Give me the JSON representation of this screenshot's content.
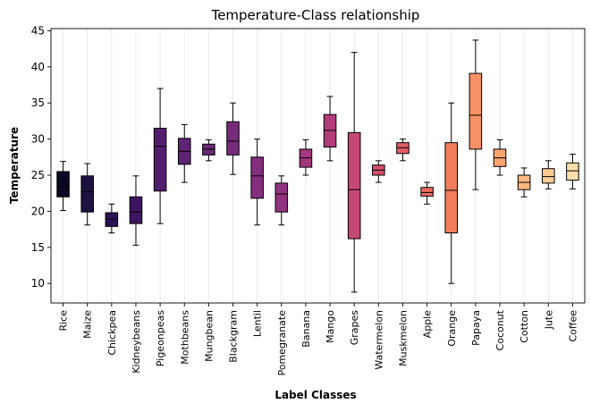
{
  "chart_data": {
    "type": "box",
    "title": "Temperature-Class relationship",
    "xlabel": "Label Classes",
    "ylabel": "Temperature",
    "ylim": [
      7.3,
      45.3
    ],
    "yticks": [
      10,
      15,
      20,
      25,
      30,
      35,
      40,
      45
    ],
    "grid": "vertical-x",
    "categories": [
      "Rice",
      "Maize",
      "Chickpea",
      "Kidneybeans",
      "Pigeonpeas",
      "Mothbeans",
      "Mungbean",
      "Blackgram",
      "Lentil",
      "Pomegranate",
      "Banana",
      "Mango",
      "Grapes",
      "Watermelon",
      "Muskmelon",
      "Apple",
      "Orange",
      "Papaya",
      "Coconut",
      "Cotton",
      "Jute",
      "Coffee"
    ],
    "colors": [
      "#0a0822",
      "#1e1240",
      "#2c1155",
      "#3e1563",
      "#541e6e",
      "#5f2373",
      "#6b2877",
      "#772c7b",
      "#842e7e",
      "#92337f",
      "#a3367f",
      "#b23b7a",
      "#c54774",
      "#d5506d",
      "#e35d67",
      "#ed6c5e",
      "#f07e5c",
      "#f59164",
      "#faa470",
      "#fcb880",
      "#fdcc95",
      "#fcdeab"
    ],
    "boxes": [
      {
        "min": 20.1,
        "q1": 22.0,
        "median": 23.4,
        "q3": 25.5,
        "max": 26.9
      },
      {
        "min": 18.1,
        "q1": 19.9,
        "median": 22.7,
        "q3": 24.9,
        "max": 26.6
      },
      {
        "min": 17.0,
        "q1": 17.9,
        "median": 18.9,
        "q3": 19.8,
        "max": 21.0
      },
      {
        "min": 15.3,
        "q1": 18.3,
        "median": 19.9,
        "q3": 22.0,
        "max": 24.9
      },
      {
        "min": 18.3,
        "q1": 22.8,
        "median": 29.0,
        "q3": 31.5,
        "max": 37.0
      },
      {
        "min": 24.0,
        "q1": 26.5,
        "median": 28.3,
        "q3": 30.1,
        "max": 32.0
      },
      {
        "min": 27.0,
        "q1": 27.8,
        "median": 28.6,
        "q3": 29.3,
        "max": 29.9
      },
      {
        "min": 25.1,
        "q1": 27.8,
        "median": 29.7,
        "q3": 32.4,
        "max": 35.0
      },
      {
        "min": 18.1,
        "q1": 21.8,
        "median": 24.9,
        "q3": 27.5,
        "max": 30.0
      },
      {
        "min": 18.1,
        "q1": 19.9,
        "median": 22.4,
        "q3": 23.9,
        "max": 24.9
      },
      {
        "min": 25.0,
        "q1": 26.1,
        "median": 27.4,
        "q3": 28.6,
        "max": 29.9
      },
      {
        "min": 27.0,
        "q1": 28.9,
        "median": 31.2,
        "q3": 33.4,
        "max": 35.9
      },
      {
        "min": 8.8,
        "q1": 16.2,
        "median": 23.0,
        "q3": 30.9,
        "max": 42.0
      },
      {
        "min": 24.0,
        "q1": 25.0,
        "median": 25.7,
        "q3": 26.4,
        "max": 27.0
      },
      {
        "min": 27.0,
        "q1": 28.0,
        "median": 28.8,
        "q3": 29.5,
        "max": 30.0
      },
      {
        "min": 21.0,
        "q1": 22.1,
        "median": 22.6,
        "q3": 23.3,
        "max": 24.0
      },
      {
        "min": 10.0,
        "q1": 17.0,
        "median": 22.9,
        "q3": 29.5,
        "max": 35.0
      },
      {
        "min": 23.0,
        "q1": 28.6,
        "median": 33.3,
        "q3": 39.1,
        "max": 43.7
      },
      {
        "min": 25.0,
        "q1": 26.2,
        "median": 27.4,
        "q3": 28.6,
        "max": 29.9
      },
      {
        "min": 22.0,
        "q1": 23.0,
        "median": 24.0,
        "q3": 25.0,
        "max": 26.0
      },
      {
        "min": 23.1,
        "q1": 23.9,
        "median": 24.8,
        "q3": 25.9,
        "max": 27.0
      },
      {
        "min": 23.1,
        "q1": 24.3,
        "median": 25.6,
        "q3": 26.7,
        "max": 27.9
      }
    ]
  }
}
